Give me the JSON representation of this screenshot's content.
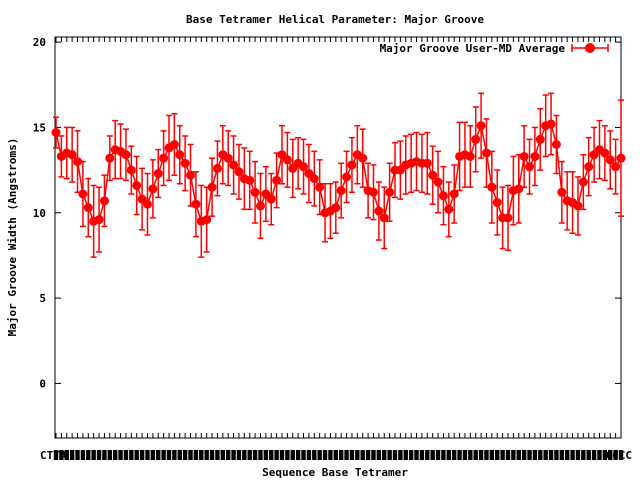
{
  "chart_data": {
    "type": "line",
    "title": "Base Tetramer Helical Parameter: Major Groove",
    "xlabel": "Sequence Base Tetramer",
    "ylabel": "Major Groove Width (Angstroms)",
    "ylim": [
      -3.2,
      20.3
    ],
    "yticks": [
      0,
      5,
      10,
      15,
      20
    ],
    "x_tick_first": "CTTA",
    "x_tick_last": "CCCC",
    "legend_position": "top-right",
    "grid": false,
    "line_color": "#ff0000",
    "series": [
      {
        "name": "Major Groove User-MD Average",
        "values": [
          14.7,
          13.3,
          13.5,
          13.4,
          13.0,
          11.1,
          10.3,
          9.5,
          9.6,
          10.7,
          13.2,
          13.7,
          13.6,
          13.4,
          12.5,
          11.6,
          10.8,
          10.5,
          11.4,
          12.3,
          13.2,
          13.8,
          14.0,
          13.4,
          12.9,
          12.2,
          10.5,
          9.5,
          9.6,
          11.5,
          12.6,
          13.4,
          13.2,
          12.8,
          12.4,
          12.0,
          11.9,
          11.2,
          10.4,
          11.1,
          10.8,
          11.9,
          13.4,
          13.1,
          12.6,
          12.9,
          12.7,
          12.3,
          12.0,
          11.5,
          10.0,
          10.1,
          10.3,
          11.3,
          12.1,
          12.8,
          13.4,
          13.2,
          11.3,
          11.2,
          10.1,
          9.7,
          11.2,
          12.5,
          12.5,
          12.8,
          12.9,
          13.0,
          12.9,
          12.9,
          12.2,
          11.8,
          11.0,
          10.2,
          11.1,
          13.3,
          13.4,
          13.3,
          14.3,
          15.1,
          13.5,
          11.5,
          10.6,
          9.7,
          9.7,
          11.3,
          11.4,
          13.3,
          12.7,
          13.3,
          14.3,
          15.1,
          15.2,
          14.0,
          11.2,
          10.7,
          10.6,
          10.4,
          11.8,
          12.7,
          13.4,
          13.7,
          13.5,
          13.1,
          12.7,
          13.2
        ],
        "errors": [
          0.9,
          1.2,
          1.5,
          1.6,
          1.8,
          1.9,
          1.7,
          2.1,
          1.9,
          1.5,
          1.3,
          1.7,
          1.6,
          1.5,
          1.4,
          1.7,
          1.8,
          1.8,
          1.7,
          1.4,
          1.6,
          1.9,
          1.8,
          1.7,
          1.6,
          1.8,
          1.9,
          2.1,
          1.9,
          1.7,
          1.6,
          1.7,
          1.6,
          1.7,
          1.6,
          1.8,
          1.7,
          1.8,
          1.9,
          1.6,
          1.5,
          1.6,
          1.7,
          1.6,
          1.7,
          1.5,
          1.6,
          1.7,
          1.6,
          1.6,
          1.7,
          1.6,
          1.5,
          1.6,
          1.5,
          1.6,
          1.7,
          1.7,
          1.6,
          1.6,
          1.7,
          1.8,
          1.7,
          1.6,
          1.7,
          1.7,
          1.7,
          1.7,
          1.7,
          1.8,
          1.7,
          1.8,
          1.7,
          1.6,
          1.7,
          2.0,
          1.9,
          1.8,
          1.9,
          1.9,
          2.0,
          2.1,
          1.9,
          1.8,
          1.9,
          2.0,
          2.0,
          1.8,
          1.6,
          1.7,
          1.8,
          1.8,
          1.8,
          1.7,
          1.8,
          1.7,
          1.8,
          1.7,
          1.6,
          1.7,
          1.6,
          1.7,
          1.6,
          1.7,
          1.6,
          3.4
        ]
      }
    ]
  }
}
